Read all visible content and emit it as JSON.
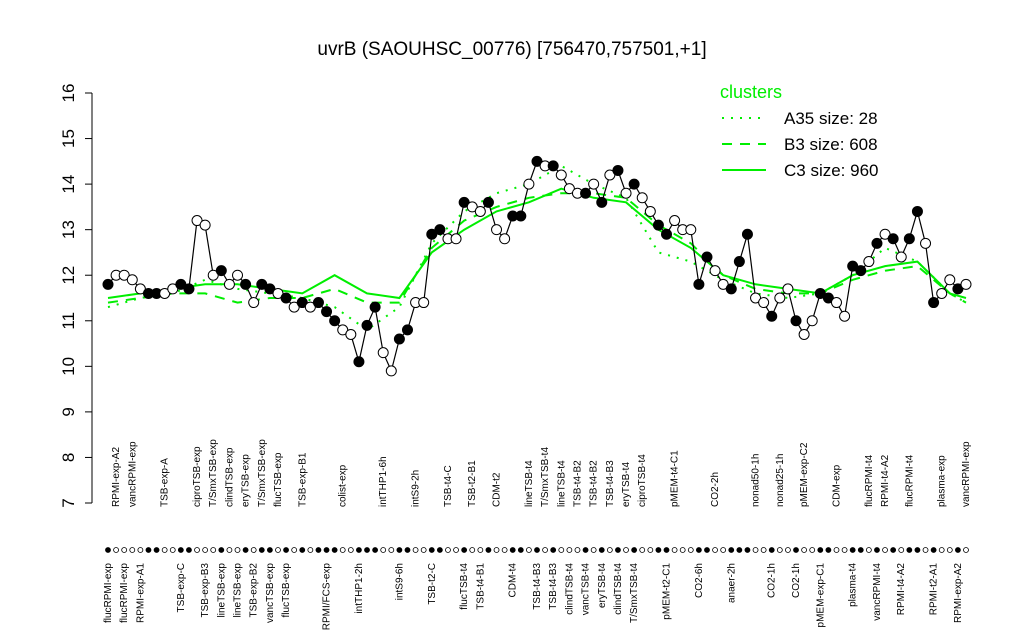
{
  "chart_data": {
    "type": "line",
    "title": "uvrB (SAOUHSC_00776) [756470,757501,+1]",
    "categories": [
      "flucRPMI-exp",
      "RPMI-exp-A2",
      "flucRPMI-exp",
      "vancRPMI-exp",
      "RPMI-exp-A1",
      null,
      null,
      "TSB-exp-A",
      null,
      "TSB-exp-C",
      null,
      "ciproTSB-exp",
      "TSB-exp-B3",
      "T/SmxTSB-exp",
      "lineTSB-exp",
      "clindTSB-exp",
      "lineTSB-exp",
      "eryTSB-exp",
      "TSB-exp-B2",
      "T/SmxTSB-exp",
      "vancTSB-exp",
      "flucTSB-exp",
      "flucTSB-exp",
      null,
      "TSB-exp-B1",
      null,
      null,
      "RPMI/FCS-exp",
      null,
      "colist-exp",
      null,
      "intTHP1-2h",
      null,
      null,
      "intTHP1-6h",
      null,
      "intS9-6h",
      null,
      "intS9-2h",
      null,
      "TSB-t2-C",
      null,
      "TSB-t4-C",
      null,
      "flucTSB-t4",
      "TSB-t2-B1",
      "TSB-t4-B1",
      null,
      "CDM-t2",
      null,
      "CDM-t4",
      null,
      "lineTSB-t4",
      "TSB-t4-B3",
      "T/SmxTSB-t4",
      "TSB-t4-B3",
      "lineTSB-t4",
      "clindTSB-t4",
      "TSB-t4-B2",
      "vancTSB-t4",
      "TSB-t4-B2",
      "eryTSB-t4",
      "TSB-t4-B3",
      "clindTSB-t4",
      "eryTSB-t4",
      "T/SmxTSB-t4",
      "ciproTSB-t4",
      null,
      null,
      "pMEM-t2-C1",
      "pMEM-t4-C1",
      null,
      null,
      "CO2-6h",
      null,
      "CO2-2h",
      null,
      "anaer-2h",
      null,
      null,
      "nonad50-1h",
      null,
      "CO2-1h",
      "nonad25-1h",
      null,
      "CO2-1h",
      "pMEM-exp-C2",
      null,
      "pMEM-exp-C1",
      null,
      "CDM-exp",
      null,
      "plasma-t4",
      null,
      "flucRPMI-t4",
      "vancRPMI-t4",
      "RPMI-t4-A2",
      null,
      "RPMI-t4-A2",
      "flucRPMI-t4",
      null,
      null,
      "RPMI-t2-A1",
      "plasma-exp",
      null,
      "RPMI-exp-A2",
      "vancRPMI-exp"
    ],
    "values": [
      11.8,
      12.0,
      12.0,
      11.9,
      11.7,
      11.6,
      11.6,
      11.6,
      11.7,
      11.8,
      11.7,
      13.2,
      13.1,
      12.0,
      12.1,
      11.8,
      12.0,
      11.8,
      11.4,
      11.8,
      11.7,
      11.6,
      11.5,
      11.3,
      11.4,
      11.3,
      11.4,
      11.2,
      11.0,
      10.8,
      10.7,
      10.1,
      10.9,
      11.3,
      10.3,
      9.9,
      10.6,
      10.8,
      11.4,
      11.4,
      12.9,
      13.0,
      12.8,
      12.8,
      13.6,
      13.5,
      13.4,
      13.6,
      13.0,
      12.8,
      13.3,
      13.3,
      14.0,
      14.5,
      14.4,
      14.4,
      14.2,
      13.9,
      13.8,
      13.8,
      14.0,
      13.6,
      14.2,
      14.3,
      13.8,
      14.0,
      13.7,
      13.4,
      13.1,
      12.9,
      13.2,
      13.0,
      13.0,
      11.8,
      12.4,
      12.1,
      11.8,
      11.7,
      12.3,
      12.9,
      11.5,
      11.4,
      11.1,
      11.5,
      11.7,
      11.0,
      10.7,
      11.0,
      11.6,
      11.5,
      11.4,
      11.1,
      12.2,
      12.1,
      12.3,
      12.7,
      12.9,
      12.8,
      12.4,
      12.8,
      13.4,
      12.7,
      11.4,
      11.6,
      11.9,
      11.7,
      11.8
    ],
    "filled": [
      true,
      false,
      false,
      false,
      false,
      true,
      true,
      false,
      false,
      true,
      true,
      false,
      false,
      false,
      true,
      false,
      false,
      true,
      false,
      true,
      true,
      false,
      true,
      false,
      true,
      false,
      true,
      true,
      true,
      false,
      false,
      true,
      true,
      true,
      false,
      false,
      true,
      true,
      false,
      false,
      true,
      true,
      false,
      false,
      true,
      false,
      false,
      true,
      false,
      false,
      true,
      true,
      false,
      true,
      false,
      true,
      false,
      false,
      false,
      true,
      false,
      true,
      false,
      true,
      false,
      true,
      false,
      false,
      true,
      true,
      false,
      false,
      false,
      true,
      true,
      false,
      false,
      true,
      true,
      true,
      false,
      false,
      true,
      false,
      false,
      true,
      false,
      false,
      true,
      true,
      false,
      false,
      true,
      true,
      false,
      true,
      false,
      true,
      false,
      true,
      true,
      false,
      true,
      false,
      false,
      true,
      false
    ],
    "color": "#000000",
    "ylim": [
      7,
      16
    ],
    "yticks": [
      7,
      8,
      9,
      10,
      11,
      12,
      13,
      14,
      15,
      16
    ],
    "legend_title": "clusters",
    "legend_position": "top-right",
    "series": [
      {
        "name": "A35 size: 28",
        "color": "#00ee00",
        "dash": "dotted",
        "x": [
          0,
          4,
          8,
          12,
          16,
          20,
          24,
          28,
          32,
          36,
          40,
          44,
          48,
          52,
          56,
          60,
          64,
          68,
          72,
          76,
          80,
          84,
          88,
          92,
          96,
          100,
          104,
          106
        ],
        "values": [
          11.3,
          11.5,
          11.6,
          11.9,
          11.7,
          11.6,
          11.5,
          11.3,
          10.8,
          11.3,
          12.7,
          13.4,
          13.8,
          14.0,
          14.4,
          14.0,
          13.7,
          12.5,
          12.3,
          11.9,
          11.6,
          11.5,
          11.6,
          12.0,
          12.6,
          12.3,
          11.6,
          11.4
        ]
      },
      {
        "name": "B3 size: 608",
        "color": "#00ee00",
        "dash": "dashed",
        "x": [
          0,
          4,
          8,
          12,
          16,
          20,
          24,
          28,
          32,
          36,
          40,
          44,
          48,
          52,
          56,
          60,
          64,
          68,
          72,
          76,
          80,
          84,
          88,
          92,
          96,
          100,
          104,
          106
        ],
        "values": [
          11.4,
          11.5,
          11.6,
          11.6,
          11.4,
          11.5,
          11.5,
          11.7,
          11.4,
          11.4,
          12.6,
          13.2,
          13.5,
          13.7,
          13.8,
          13.8,
          13.7,
          13.1,
          12.7,
          12.0,
          11.7,
          11.6,
          11.6,
          11.9,
          12.1,
          12.2,
          11.6,
          11.4
        ]
      },
      {
        "name": "C3 size: 960",
        "color": "#00ee00",
        "dash": "solid",
        "x": [
          0,
          4,
          8,
          12,
          16,
          20,
          24,
          28,
          32,
          36,
          40,
          44,
          48,
          52,
          56,
          60,
          64,
          68,
          72,
          76,
          80,
          84,
          88,
          92,
          96,
          100,
          104,
          106
        ],
        "values": [
          11.5,
          11.6,
          11.7,
          11.8,
          11.8,
          11.7,
          11.6,
          12.0,
          11.6,
          11.5,
          12.5,
          13.0,
          13.4,
          13.6,
          13.9,
          13.7,
          13.6,
          13.0,
          12.6,
          12.0,
          11.8,
          11.7,
          11.6,
          12.0,
          12.2,
          12.3,
          11.6,
          11.5
        ]
      }
    ]
  }
}
